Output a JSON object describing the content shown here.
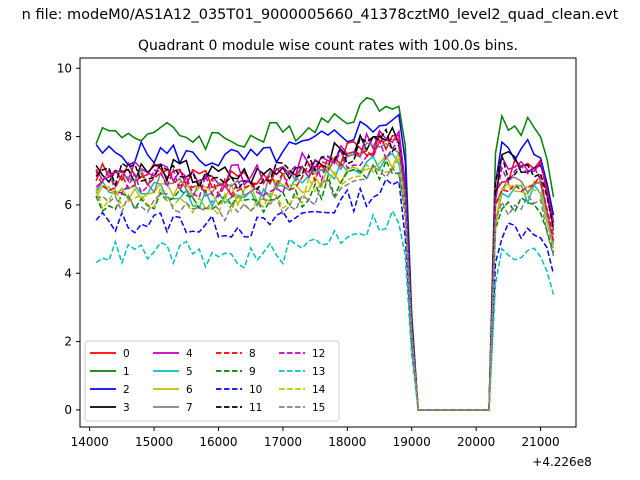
{
  "chart_data": {
    "type": "line",
    "suptitle": "n file: modeM0/AS1A12_035T01_9000005660_41378cztM0_level2_quad_clean.evt",
    "title": "Quadrant 0 module wise count rates with 100.0s bins.",
    "xlabel": "",
    "ylabel": "",
    "x_offset_label": "+4.226e8",
    "xlim": [
      13850,
      21550
    ],
    "ylim": [
      -0.5,
      10.3
    ],
    "xticks": [
      14000,
      15000,
      16000,
      17000,
      18000,
      19000,
      20000,
      21000
    ],
    "yticks": [
      0,
      2,
      4,
      6,
      8,
      10
    ],
    "x_start": 14100,
    "x_step": 100,
    "gap_x": [
      19100,
      20200
    ],
    "post_start": 20300,
    "grid": false,
    "legend": {
      "position": "lower-left",
      "columns": 4
    },
    "series": [
      {
        "name": "0",
        "color": "#ff0000",
        "dash": "solid",
        "base": 6.9,
        "post": 7.0
      },
      {
        "name": "1",
        "color": "#008000",
        "dash": "solid",
        "base": 8.1,
        "post": 8.3
      },
      {
        "name": "2",
        "color": "#0000ff",
        "dash": "solid",
        "base": 7.5,
        "post": 7.6
      },
      {
        "name": "3",
        "color": "#000000",
        "dash": "solid",
        "base": 7.0,
        "post": 7.3
      },
      {
        "name": "4",
        "color": "#bf00bf",
        "dash": "solid",
        "base": 7.0,
        "post": 7.3
      },
      {
        "name": "5",
        "color": "#00bfbf",
        "dash": "solid",
        "base": 6.4,
        "post": 6.3
      },
      {
        "name": "6",
        "color": "#bfbf00",
        "dash": "solid",
        "base": 6.4,
        "post": 6.5
      },
      {
        "name": "7",
        "color": "#808080",
        "dash": "solid",
        "base": 6.7,
        "post": 6.5
      },
      {
        "name": "8",
        "color": "#ff0000",
        "dash": "dashed",
        "base": 6.7,
        "post": 6.6
      },
      {
        "name": "9",
        "color": "#008000",
        "dash": "dashed",
        "base": 6.1,
        "post": 6.1
      },
      {
        "name": "10",
        "color": "#0000ff",
        "dash": "dashed",
        "base": 5.5,
        "post": 5.3
      },
      {
        "name": "11",
        "color": "#000000",
        "dash": "dashed",
        "base": 6.9,
        "post": 7.1
      },
      {
        "name": "12",
        "color": "#bf00bf",
        "dash": "dashed",
        "base": 6.7,
        "post": 6.8
      },
      {
        "name": "13",
        "color": "#00bfbf",
        "dash": "dashed",
        "base": 4.6,
        "post": 4.5
      },
      {
        "name": "14",
        "color": "#bfbf00",
        "dash": "dashed",
        "base": 6.2,
        "post": 6.3
      },
      {
        "name": "15",
        "color": "#808080",
        "dash": "dashed",
        "base": 6.0,
        "post": 6.0
      }
    ]
  }
}
